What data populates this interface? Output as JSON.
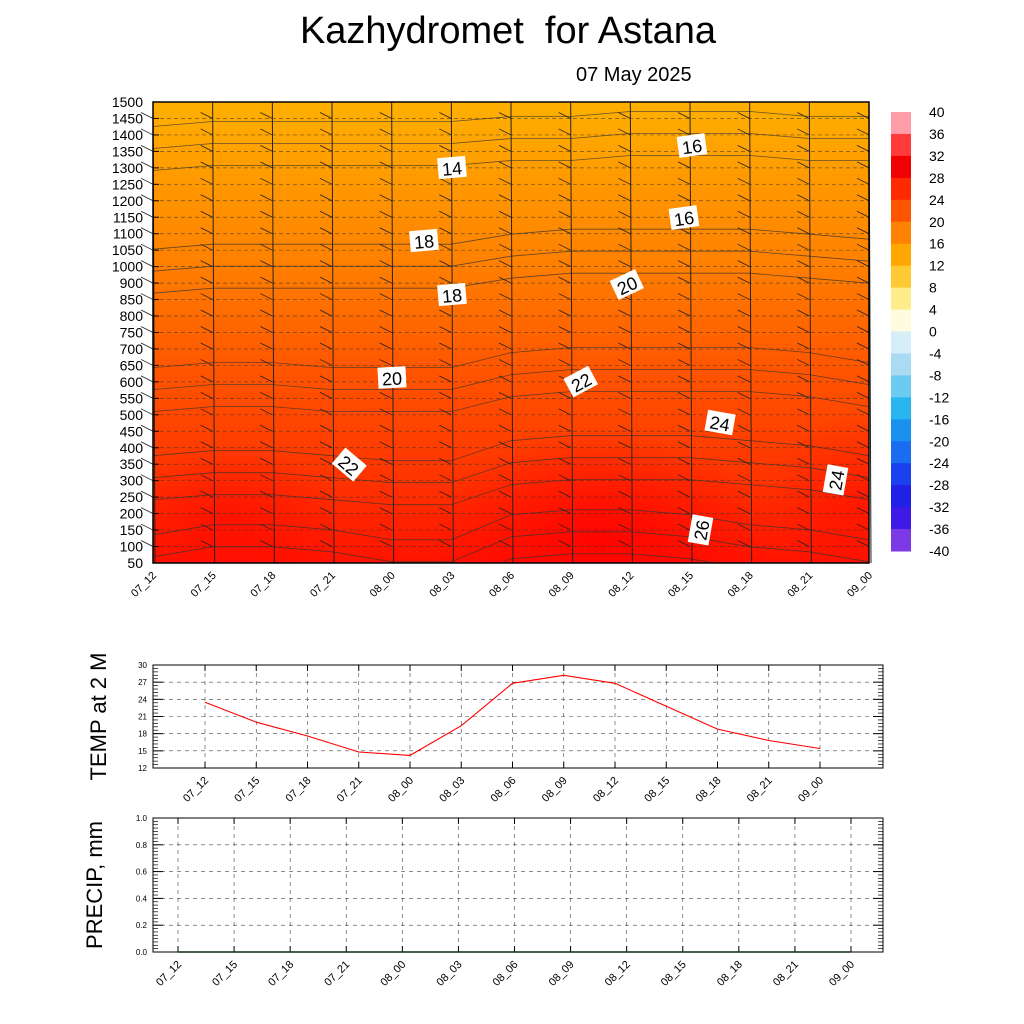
{
  "header": {
    "title": "Kazhydromet  for Astana",
    "date": "07 May 2025"
  },
  "chart_data": [
    {
      "type": "heatmap",
      "time_labels": [
        "07_12",
        "07_15",
        "07_18",
        "07_21",
        "08_00",
        "08_03",
        "08_06",
        "08_09",
        "08_12",
        "08_15",
        "08_18",
        "08_21",
        "09_00"
      ],
      "y_ticks": [
        50,
        100,
        150,
        200,
        250,
        300,
        350,
        400,
        450,
        500,
        550,
        600,
        650,
        700,
        750,
        800,
        850,
        900,
        1000,
        1050,
        1100,
        1150,
        1200,
        1250,
        1300,
        1350,
        1400,
        1450,
        1500
      ],
      "colorbar_ticks": [
        40,
        36,
        32,
        28,
        24,
        20,
        16,
        12,
        8,
        4,
        0,
        -4,
        -8,
        -12,
        -16,
        -20,
        -24,
        -28,
        -32,
        -36,
        -40
      ],
      "contour_labels": [
        "14",
        "16",
        "16",
        "18",
        "18",
        "20",
        "20",
        "22",
        "22",
        "24",
        "24",
        "26"
      ],
      "temperature_at_levels": [
        [
          23,
          25,
          25,
          24,
          22,
          22,
          27,
          28,
          28,
          27,
          25,
          24,
          22
        ],
        [
          21,
          22,
          22,
          21,
          20,
          20,
          24,
          25,
          25,
          25,
          24,
          23,
          21
        ],
        [
          18,
          19,
          19,
          18,
          18,
          18,
          21,
          22,
          22,
          22,
          22,
          21,
          19
        ],
        [
          15,
          16,
          16,
          16,
          16,
          16,
          18,
          19,
          19,
          19,
          19,
          18,
          17
        ],
        [
          13,
          14,
          14,
          14,
          14,
          14,
          15,
          15,
          16,
          16,
          16,
          15,
          15
        ]
      ],
      "colors": {
        "warm_high": "#ff1a00",
        "warm_mid": "#ff6a00",
        "warm_low": "#ffb000"
      }
    },
    {
      "type": "line",
      "ylabel": "TEMP at 2 M",
      "x": [
        "07_12",
        "07_15",
        "07_18",
        "07_21",
        "08_00",
        "08_03",
        "08_06",
        "08_09",
        "08_12",
        "08_15",
        "08_18",
        "08_21",
        "09_00"
      ],
      "y_ticks": [
        12,
        15,
        18,
        21,
        24,
        27,
        30
      ],
      "ylim": [
        12,
        30
      ],
      "values": [
        23.5,
        20.0,
        17.6,
        14.8,
        14.2,
        19.4,
        26.8,
        28.2,
        26.8,
        22.8,
        18.8,
        16.8,
        15.4
      ],
      "color": "#ff0000"
    },
    {
      "type": "line",
      "ylabel": "PRECIP, mm",
      "x": [
        "07_12",
        "07_15",
        "07_18",
        "07_21",
        "08_00",
        "08_03",
        "08_06",
        "08_09",
        "08_12",
        "08_15",
        "08_18",
        "08_21",
        "09_00"
      ],
      "y_ticks": [
        "0.0",
        "0.2",
        "0.4",
        "0.6",
        "0.8",
        "1.0"
      ],
      "ylim": [
        0,
        1
      ],
      "values": [
        0,
        0,
        0,
        0,
        0,
        0,
        0,
        0,
        0,
        0,
        0,
        0,
        0
      ],
      "color": "#2e7d32"
    }
  ]
}
